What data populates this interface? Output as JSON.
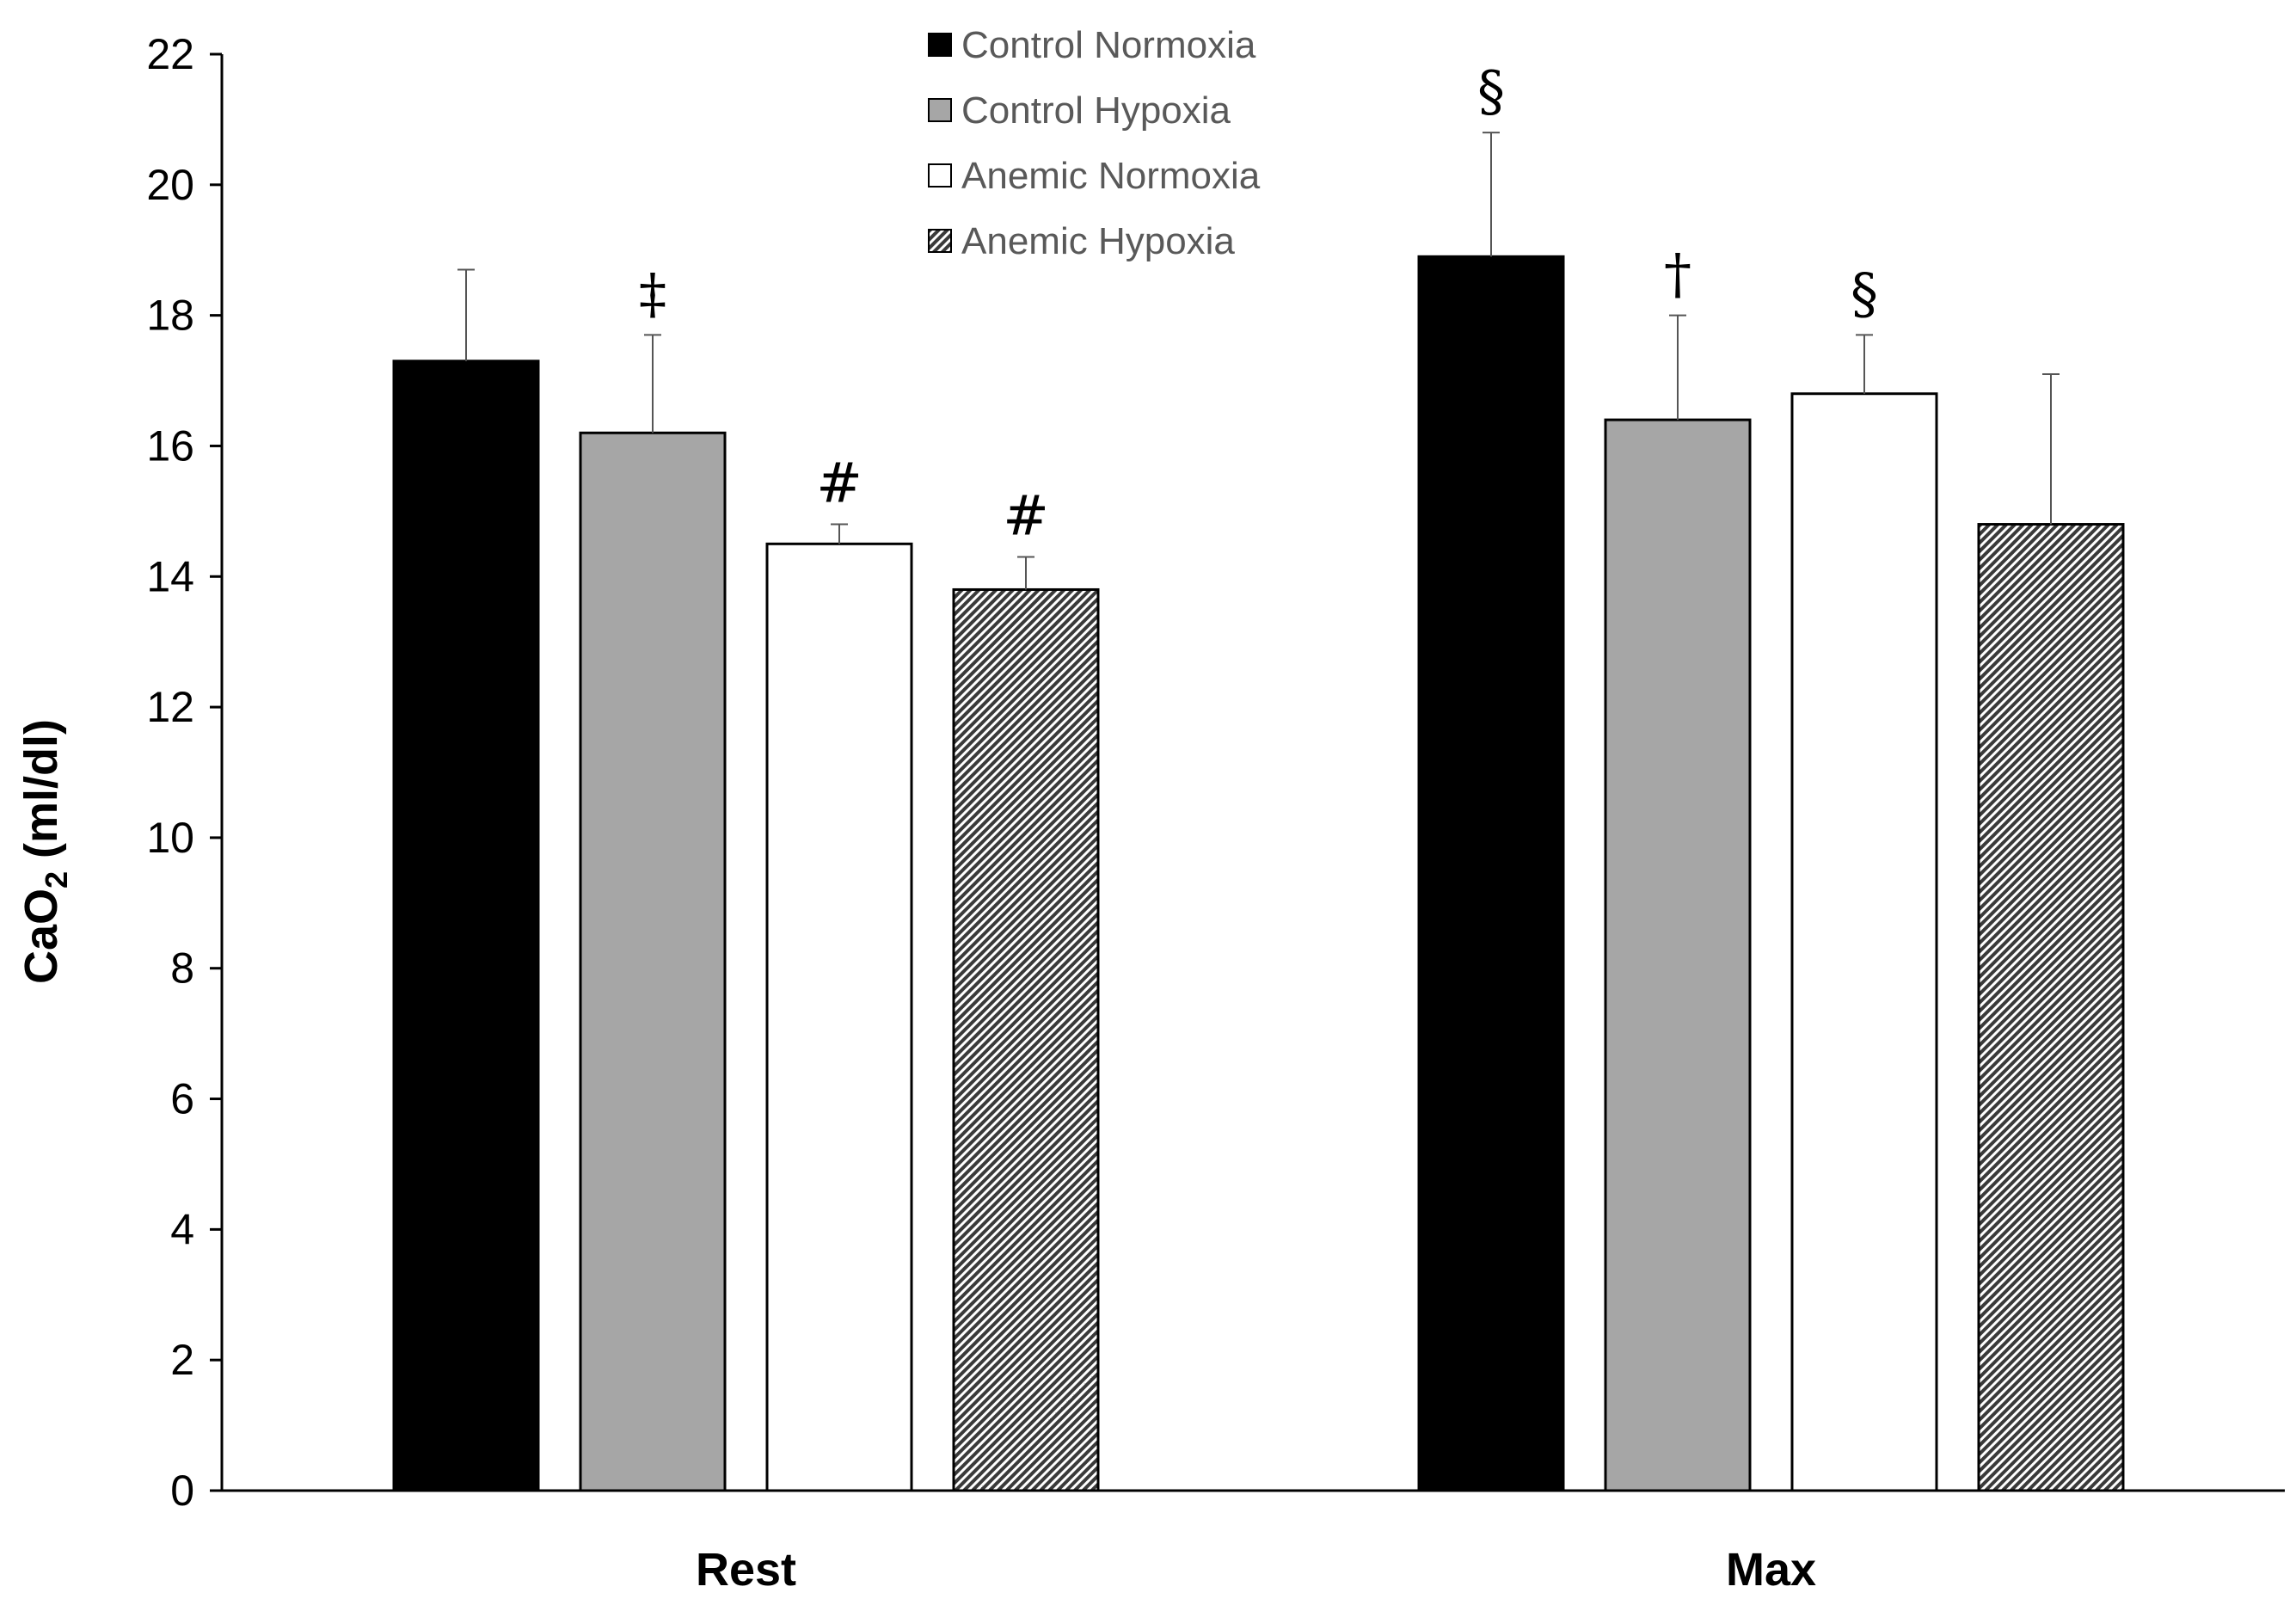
{
  "chart_data": {
    "type": "bar",
    "title": "",
    "xlabel": "",
    "ylabel": {
      "prefix": "CaO",
      "subscript": "2",
      "suffix": " (ml/dl)"
    },
    "ylim": [
      0,
      22
    ],
    "yticks": [
      0,
      2,
      4,
      6,
      8,
      10,
      12,
      14,
      16,
      18,
      20,
      22
    ],
    "categories": [
      "Rest",
      "Max"
    ],
    "legend_position": "top-center",
    "series": [
      {
        "name": "Control Normoxia",
        "fill": "#000000",
        "pattern": "solid",
        "values": [
          17.3,
          18.9
        ],
        "errors": [
          1.4,
          1.9
        ],
        "annotations": [
          "",
          "§"
        ]
      },
      {
        "name": "Control Hypoxia",
        "fill": "#a6a6a6",
        "pattern": "solid",
        "values": [
          16.2,
          16.4
        ],
        "errors": [
          1.5,
          1.6
        ],
        "annotations": [
          "‡",
          "†"
        ]
      },
      {
        "name": "Anemic Normoxia",
        "fill": "#ffffff",
        "pattern": "solid",
        "values": [
          14.5,
          16.8
        ],
        "errors": [
          0.3,
          0.9
        ],
        "annotations": [
          "#",
          "§"
        ]
      },
      {
        "name": "Anemic Hypoxia",
        "fill": "#808080",
        "pattern": "hatched",
        "values": [
          13.8,
          14.8
        ],
        "errors": [
          0.5,
          2.3
        ],
        "annotations": [
          "#",
          ""
        ]
      }
    ]
  }
}
